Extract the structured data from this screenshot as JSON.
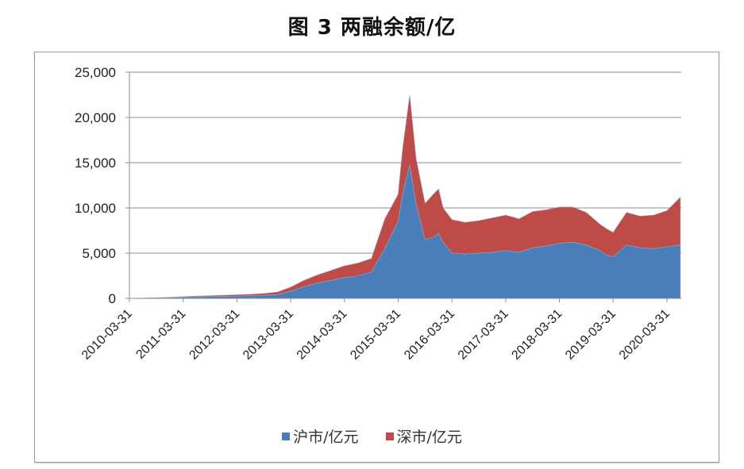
{
  "title": "图 3 两融余额/亿",
  "legend": [
    {
      "label": "沪市/亿元",
      "color": "#4a7ebb"
    },
    {
      "label": "深市/亿元",
      "color": "#be4b48"
    }
  ],
  "chart_data": {
    "type": "area",
    "stacked": true,
    "title": "图 3 两融余额/亿",
    "xlabel": "",
    "ylabel": "",
    "ylim": [
      0,
      25000
    ],
    "yticks": [
      "0",
      "5,000",
      "10,000",
      "15,000",
      "20,000",
      "25,000"
    ],
    "xticks": [
      "2010-03-31",
      "2011-03-31",
      "2012-03-31",
      "2013-03-31",
      "2014-03-31",
      "2015-03-31",
      "2016-03-31",
      "2017-03-31",
      "2018-03-31",
      "2019-03-31",
      "2020-03-31"
    ],
    "grid": "horizontal",
    "legend_position": "bottom",
    "x": [
      "2010-03-31",
      "2010-06-30",
      "2010-09-30",
      "2010-12-31",
      "2011-03-31",
      "2011-06-30",
      "2011-09-30",
      "2011-12-31",
      "2012-03-31",
      "2012-06-30",
      "2012-09-30",
      "2012-12-31",
      "2013-03-31",
      "2013-06-30",
      "2013-09-30",
      "2013-12-31",
      "2014-03-31",
      "2014-06-30",
      "2014-09-30",
      "2014-12-31",
      "2015-03-31",
      "2015-04-30",
      "2015-06-18",
      "2015-07-31",
      "2015-09-30",
      "2015-11-30",
      "2015-12-31",
      "2016-01-31",
      "2016-03-31",
      "2016-06-30",
      "2016-09-30",
      "2016-12-31",
      "2017-03-31",
      "2017-06-30",
      "2017-09-30",
      "2017-12-31",
      "2018-03-31",
      "2018-06-30",
      "2018-09-30",
      "2018-12-31",
      "2019-02-15",
      "2019-03-31",
      "2019-06-30",
      "2019-09-30",
      "2019-12-31",
      "2020-03-31",
      "2020-06-30"
    ],
    "series": [
      {
        "name": "沪市/亿元",
        "color": "#4a7ebb",
        "values": [
          0,
          20,
          50,
          90,
          130,
          170,
          200,
          230,
          260,
          300,
          340,
          420,
          800,
          1300,
          1700,
          2000,
          2300,
          2500,
          2900,
          5500,
          8500,
          11500,
          14800,
          10500,
          6500,
          6800,
          7200,
          6200,
          5000,
          4900,
          5000,
          5100,
          5300,
          5100,
          5600,
          5800,
          6100,
          6200,
          5900,
          5300,
          4800,
          4600,
          5900,
          5600,
          5500,
          5700,
          5900
        ]
      },
      {
        "name": "深市/亿元",
        "color": "#be4b48",
        "values": [
          0,
          10,
          20,
          40,
          60,
          80,
          100,
          120,
          140,
          160,
          200,
          280,
          450,
          700,
          900,
          1100,
          1300,
          1400,
          1500,
          3300,
          3000,
          5000,
          7700,
          5000,
          4000,
          4800,
          4900,
          3800,
          3700,
          3500,
          3600,
          3800,
          3900,
          3700,
          4000,
          4000,
          4000,
          3900,
          3600,
          2900,
          2900,
          2700,
          3600,
          3500,
          3700,
          4000,
          5300
        ]
      }
    ]
  }
}
